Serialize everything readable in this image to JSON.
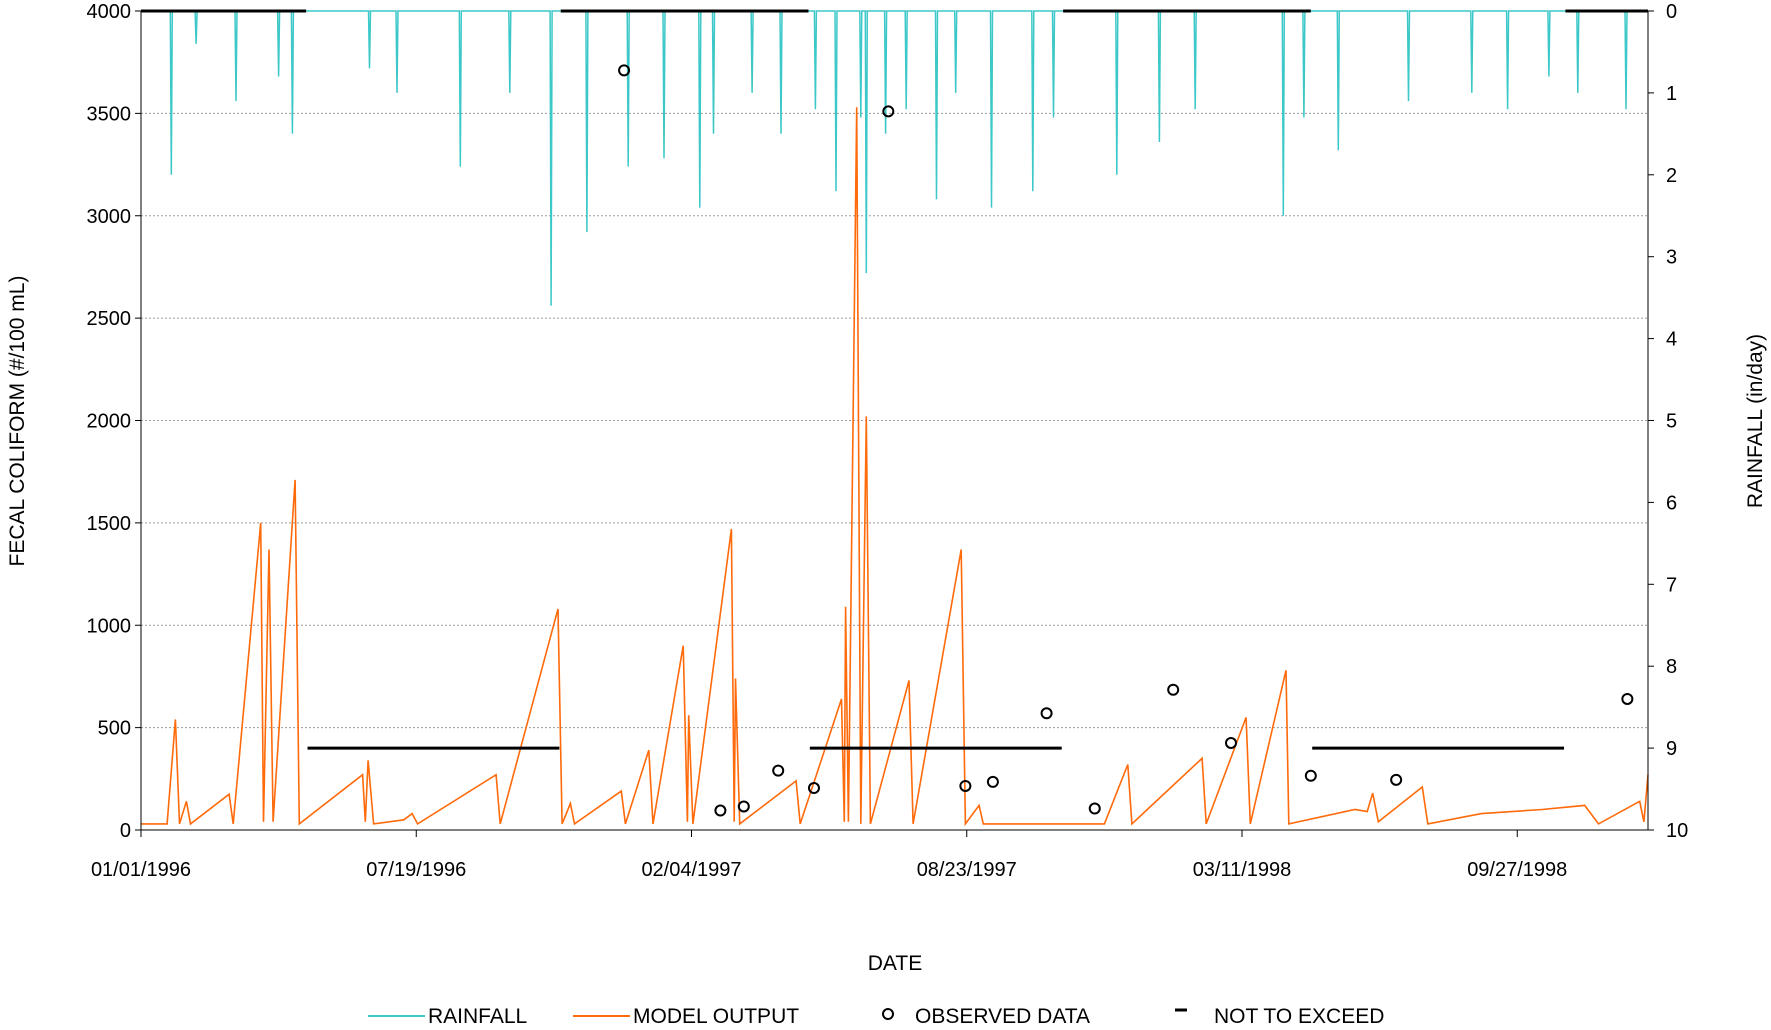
{
  "chart_data": {
    "type": "line",
    "title": "",
    "xlabel": "DATE",
    "ylabel_left": "FECAL COLIFORM (#/100 mL)",
    "ylabel_right": "RAINFALL (in/day)",
    "x_start": "1996-01-01",
    "x_end": "1998-12-31",
    "x_ticks": [
      "1996-01-01",
      "1996-07-19",
      "1997-02-04",
      "1997-08-23",
      "1998-03-11",
      "1998-09-27"
    ],
    "x_tick_labels": [
      "01/01/1996",
      "07/19/1996",
      "02/04/1997",
      "08/23/1997",
      "03/11/1998",
      "09/27/1998"
    ],
    "ylim_left": [
      0,
      4000
    ],
    "yticks_left": [
      0,
      500,
      1000,
      1500,
      2000,
      2500,
      3000,
      3500,
      4000
    ],
    "ylim_right": [
      0,
      10
    ],
    "yticks_right": [
      0,
      1,
      2,
      3,
      4,
      5,
      6,
      7,
      8,
      9,
      10
    ],
    "right_axis_inverted": true,
    "grid": "horizontal dotted",
    "legend_position": "bottom",
    "legend": [
      "RAINFALL",
      "MODEL OUTPUT",
      "OBSERVED DATA",
      "NOT TO EXCEED"
    ],
    "colors": {
      "rainfall": "#3cc8c8",
      "model": "#ff6a0a",
      "observed": "#000000",
      "limit": "#000000"
    },
    "series": [
      {
        "name": "MODEL OUTPUT",
        "kind": "line",
        "points": [
          [
            "1996-01-01",
            30
          ],
          [
            "1996-01-20",
            30
          ],
          [
            "1996-01-26",
            540
          ],
          [
            "1996-01-29",
            30
          ],
          [
            "1996-02-03",
            140
          ],
          [
            "1996-02-06",
            30
          ],
          [
            "1996-03-05",
            175
          ],
          [
            "1996-03-08",
            30
          ],
          [
            "1996-03-28",
            1500
          ],
          [
            "1996-03-30",
            40
          ],
          [
            "1996-04-03",
            1370
          ],
          [
            "1996-04-06",
            40
          ],
          [
            "1996-04-22",
            1710
          ],
          [
            "1996-04-25",
            30
          ],
          [
            "1996-06-10",
            270
          ],
          [
            "1996-06-12",
            40
          ],
          [
            "1996-06-14",
            340
          ],
          [
            "1996-06-18",
            30
          ],
          [
            "1996-07-10",
            50
          ],
          [
            "1996-07-16",
            80
          ],
          [
            "1996-07-20",
            30
          ],
          [
            "1996-09-15",
            270
          ],
          [
            "1996-09-18",
            30
          ],
          [
            "1996-10-30",
            1080
          ],
          [
            "1996-11-02",
            30
          ],
          [
            "1996-11-08",
            130
          ],
          [
            "1996-11-11",
            30
          ],
          [
            "1996-12-15",
            190
          ],
          [
            "1996-12-18",
            30
          ],
          [
            "1997-01-04",
            390
          ],
          [
            "1997-01-07",
            30
          ],
          [
            "1997-01-29",
            900
          ],
          [
            "1997-02-01",
            40
          ],
          [
            "1997-02-02",
            560
          ],
          [
            "1997-02-05",
            30
          ],
          [
            "1997-03-05",
            1470
          ],
          [
            "1997-03-07",
            40
          ],
          [
            "1997-03-08",
            740
          ],
          [
            "1997-03-11",
            30
          ],
          [
            "1997-04-21",
            240
          ],
          [
            "1997-04-24",
            30
          ],
          [
            "1997-05-24",
            640
          ],
          [
            "1997-05-26",
            40
          ],
          [
            "1997-05-27",
            1090
          ],
          [
            "1997-05-29",
            40
          ],
          [
            "1997-06-04",
            3530
          ],
          [
            "1997-06-07",
            30
          ],
          [
            "1997-06-11",
            2020
          ],
          [
            "1997-06-14",
            30
          ],
          [
            "1997-07-12",
            730
          ],
          [
            "1997-07-15",
            30
          ],
          [
            "1997-08-19",
            1370
          ],
          [
            "1997-08-22",
            30
          ],
          [
            "1997-09-01",
            120
          ],
          [
            "1997-09-04",
            30
          ],
          [
            "1997-10-20",
            30
          ],
          [
            "1997-12-01",
            30
          ],
          [
            "1997-12-18",
            320
          ],
          [
            "1997-12-21",
            30
          ],
          [
            "1998-02-10",
            350
          ],
          [
            "1998-02-13",
            30
          ],
          [
            "1998-03-14",
            550
          ],
          [
            "1998-03-17",
            30
          ],
          [
            "1998-04-12",
            780
          ],
          [
            "1998-04-14",
            30
          ],
          [
            "1998-06-01",
            100
          ],
          [
            "1998-06-10",
            90
          ],
          [
            "1998-06-14",
            180
          ],
          [
            "1998-06-18",
            40
          ],
          [
            "1998-07-20",
            210
          ],
          [
            "1998-07-24",
            30
          ],
          [
            "1998-09-01",
            80
          ],
          [
            "1998-10-15",
            100
          ],
          [
            "1998-11-15",
            120
          ],
          [
            "1998-11-25",
            30
          ],
          [
            "1998-12-25",
            140
          ],
          [
            "1998-12-28",
            40
          ],
          [
            "1998-12-31",
            270
          ]
        ]
      },
      {
        "name": "RAINFALL",
        "kind": "spikes",
        "axis": "right",
        "points": [
          [
            "1996-01-23",
            2.0
          ],
          [
            "1996-02-10",
            0.4
          ],
          [
            "1996-03-10",
            1.1
          ],
          [
            "1996-04-10",
            0.8
          ],
          [
            "1996-04-20",
            1.5
          ],
          [
            "1996-06-15",
            0.7
          ],
          [
            "1996-07-05",
            1.0
          ],
          [
            "1996-08-20",
            1.9
          ],
          [
            "1996-09-25",
            1.0
          ],
          [
            "1996-10-25",
            3.6
          ],
          [
            "1996-11-20",
            2.7
          ],
          [
            "1996-12-20",
            1.9
          ],
          [
            "1997-01-15",
            1.8
          ],
          [
            "1997-02-10",
            2.4
          ],
          [
            "1997-02-20",
            1.5
          ],
          [
            "1997-03-20",
            1.0
          ],
          [
            "1997-04-10",
            1.5
          ],
          [
            "1997-05-05",
            1.2
          ],
          [
            "1997-05-20",
            2.2
          ],
          [
            "1997-06-07",
            1.3
          ],
          [
            "1997-06-11",
            3.2
          ],
          [
            "1997-06-25",
            1.5
          ],
          [
            "1997-07-10",
            1.2
          ],
          [
            "1997-08-01",
            2.3
          ],
          [
            "1997-08-15",
            1.0
          ],
          [
            "1997-09-10",
            2.4
          ],
          [
            "1997-10-10",
            2.2
          ],
          [
            "1997-10-25",
            1.3
          ],
          [
            "1997-12-10",
            2.0
          ],
          [
            "1998-01-10",
            1.6
          ],
          [
            "1998-02-05",
            1.2
          ],
          [
            "1998-04-10",
            2.5
          ],
          [
            "1998-04-25",
            1.3
          ],
          [
            "1998-05-20",
            1.7
          ],
          [
            "1998-07-10",
            1.1
          ],
          [
            "1998-08-25",
            1.0
          ],
          [
            "1998-09-20",
            1.2
          ],
          [
            "1998-10-20",
            0.8
          ],
          [
            "1998-11-10",
            1.0
          ],
          [
            "1998-12-15",
            1.2
          ]
        ]
      },
      {
        "name": "OBSERVED DATA",
        "kind": "points",
        "points": [
          [
            "1996-12-17",
            3710
          ],
          [
            "1997-02-25",
            95
          ],
          [
            "1997-03-14",
            115
          ],
          [
            "1997-04-08",
            290
          ],
          [
            "1997-05-04",
            205
          ],
          [
            "1997-06-27",
            3510
          ],
          [
            "1997-08-22",
            215
          ],
          [
            "1997-09-11",
            235
          ],
          [
            "1997-10-20",
            570
          ],
          [
            "1997-11-24",
            105
          ],
          [
            "1998-01-20",
            685
          ],
          [
            "1998-03-03",
            425
          ],
          [
            "1998-04-30",
            265
          ],
          [
            "1998-07-01",
            245
          ],
          [
            "1998-12-16",
            640
          ]
        ]
      },
      {
        "name": "NOT TO EXCEED",
        "kind": "segments",
        "segments": [
          [
            "1996-01-01",
            "1996-04-30",
            4000
          ],
          [
            "1996-05-01",
            "1996-10-31",
            400
          ],
          [
            "1996-11-01",
            "1997-04-30",
            4000
          ],
          [
            "1997-05-01",
            "1997-10-31",
            400
          ],
          [
            "1997-11-01",
            "1998-04-30",
            4000
          ],
          [
            "1998-05-01",
            "1998-10-31",
            400
          ],
          [
            "1998-11-01",
            "1998-12-31",
            4000
          ]
        ]
      }
    ]
  }
}
